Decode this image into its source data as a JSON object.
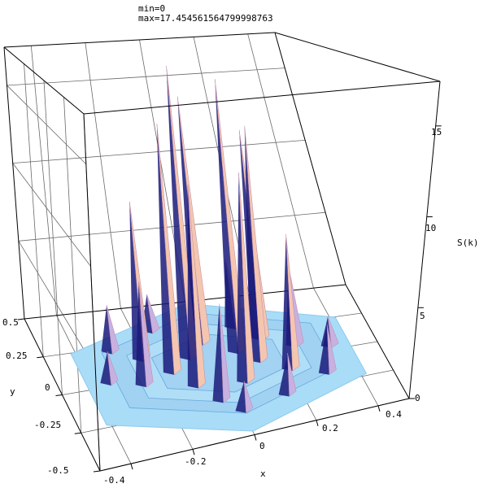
{
  "chart_data": {
    "type": "surface3d",
    "annotation": {
      "min_label": "min=0",
      "max_label": "max=17.454561564799998763"
    },
    "x_axis": {
      "label": "x",
      "range": [
        -0.5,
        0.5
      ],
      "ticks": [
        "-0.4",
        "-0.2",
        "0",
        "0.2",
        "0.4"
      ]
    },
    "y_axis": {
      "label": "y",
      "range": [
        -0.5,
        0.5
      ],
      "ticks": [
        "-0.5",
        "-0.25",
        "0",
        "0.25",
        "0.5"
      ]
    },
    "z_axis": {
      "label": "S(k)",
      "range": [
        0,
        17.4545615648
      ],
      "ticks": [
        "0",
        "5",
        "10",
        "15"
      ]
    },
    "surface": {
      "domain": "hexagon",
      "colors": {
        "low": "#a9dcf7",
        "mid": "#c8b0e0",
        "high": "#f4c6b0",
        "shadow": "#1a1a7a"
      },
      "peaks": [
        {
          "x": -0.08,
          "y": 0.08,
          "z": 17.45
        },
        {
          "x": 0.07,
          "y": 0.07,
          "z": 16.5
        },
        {
          "x": -0.02,
          "y": 0.17,
          "z": 15.2
        },
        {
          "x": 0.12,
          "y": -0.02,
          "z": 14.0
        },
        {
          "x": -0.15,
          "y": 0.0,
          "z": 14.5
        },
        {
          "x": 0.16,
          "y": 0.14,
          "z": 13.0
        },
        {
          "x": -0.1,
          "y": -0.12,
          "z": 11.5
        },
        {
          "x": 0.05,
          "y": -0.15,
          "z": 12.0
        },
        {
          "x": -0.22,
          "y": 0.12,
          "z": 9.5
        },
        {
          "x": 0.2,
          "y": -0.12,
          "z": 8.0
        },
        {
          "x": -0.25,
          "y": -0.05,
          "z": 6.0
        },
        {
          "x": 0.25,
          "y": 0.05,
          "z": 5.0
        },
        {
          "x": -0.05,
          "y": -0.25,
          "z": 5.5
        },
        {
          "x": 0.1,
          "y": 0.25,
          "z": 4.5
        },
        {
          "x": -0.3,
          "y": 0.2,
          "z": 3.0
        },
        {
          "x": 0.3,
          "y": -0.2,
          "z": 3.0
        },
        {
          "x": 0.15,
          "y": -0.3,
          "z": 2.5
        },
        {
          "x": -0.15,
          "y": 0.3,
          "z": 2.5
        },
        {
          "x": -0.35,
          "y": 0.0,
          "z": 2.0
        },
        {
          "x": 0.35,
          "y": 0.0,
          "z": 2.0
        },
        {
          "x": 0.0,
          "y": -0.35,
          "z": 1.8
        },
        {
          "x": 0.0,
          "y": 0.35,
          "z": 1.8
        }
      ]
    },
    "box": true,
    "grid": true
  }
}
